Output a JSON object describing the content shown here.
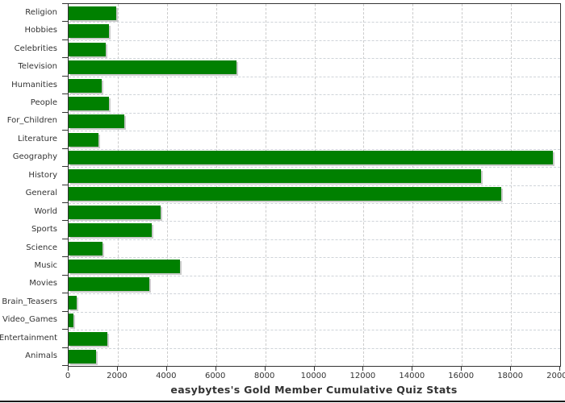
{
  "chart_data": {
    "type": "bar",
    "orientation": "horizontal",
    "title": "easybytes's Gold Member Cumulative Quiz Stats",
    "categories": [
      "Religion",
      "Hobbies",
      "Celebrities",
      "Television",
      "Humanities",
      "People",
      "For_Children",
      "Literature",
      "Geography",
      "History",
      "General",
      "World",
      "Sports",
      "Science",
      "Music",
      "Movies",
      "Brain_Teasers",
      "Video_Games",
      "Entertainment",
      "Animals"
    ],
    "values": [
      1950,
      1640,
      1500,
      6830,
      1350,
      1630,
      2280,
      1220,
      19700,
      16780,
      17590,
      3730,
      3370,
      1370,
      4530,
      3290,
      330,
      210,
      1560,
      1110
    ],
    "xlabel": "",
    "ylabel": "",
    "xlim": [
      0,
      20000
    ],
    "xticks": [
      0,
      2000,
      4000,
      6000,
      8000,
      10000,
      12000,
      14000,
      16000,
      18000,
      20000
    ],
    "xtick_labels": [
      "0",
      "2000",
      "4000",
      "6000",
      "8000",
      "10000",
      "12000",
      "14000",
      "16000",
      "18000",
      "20000"
    ],
    "grid": true,
    "legend": false,
    "colors": {
      "bar": "#008000",
      "bar_shadow": "#cccccc",
      "gridline": "#cccccc",
      "plot_border": "#333333",
      "text": "#333333",
      "background": "#ffffff"
    }
  }
}
